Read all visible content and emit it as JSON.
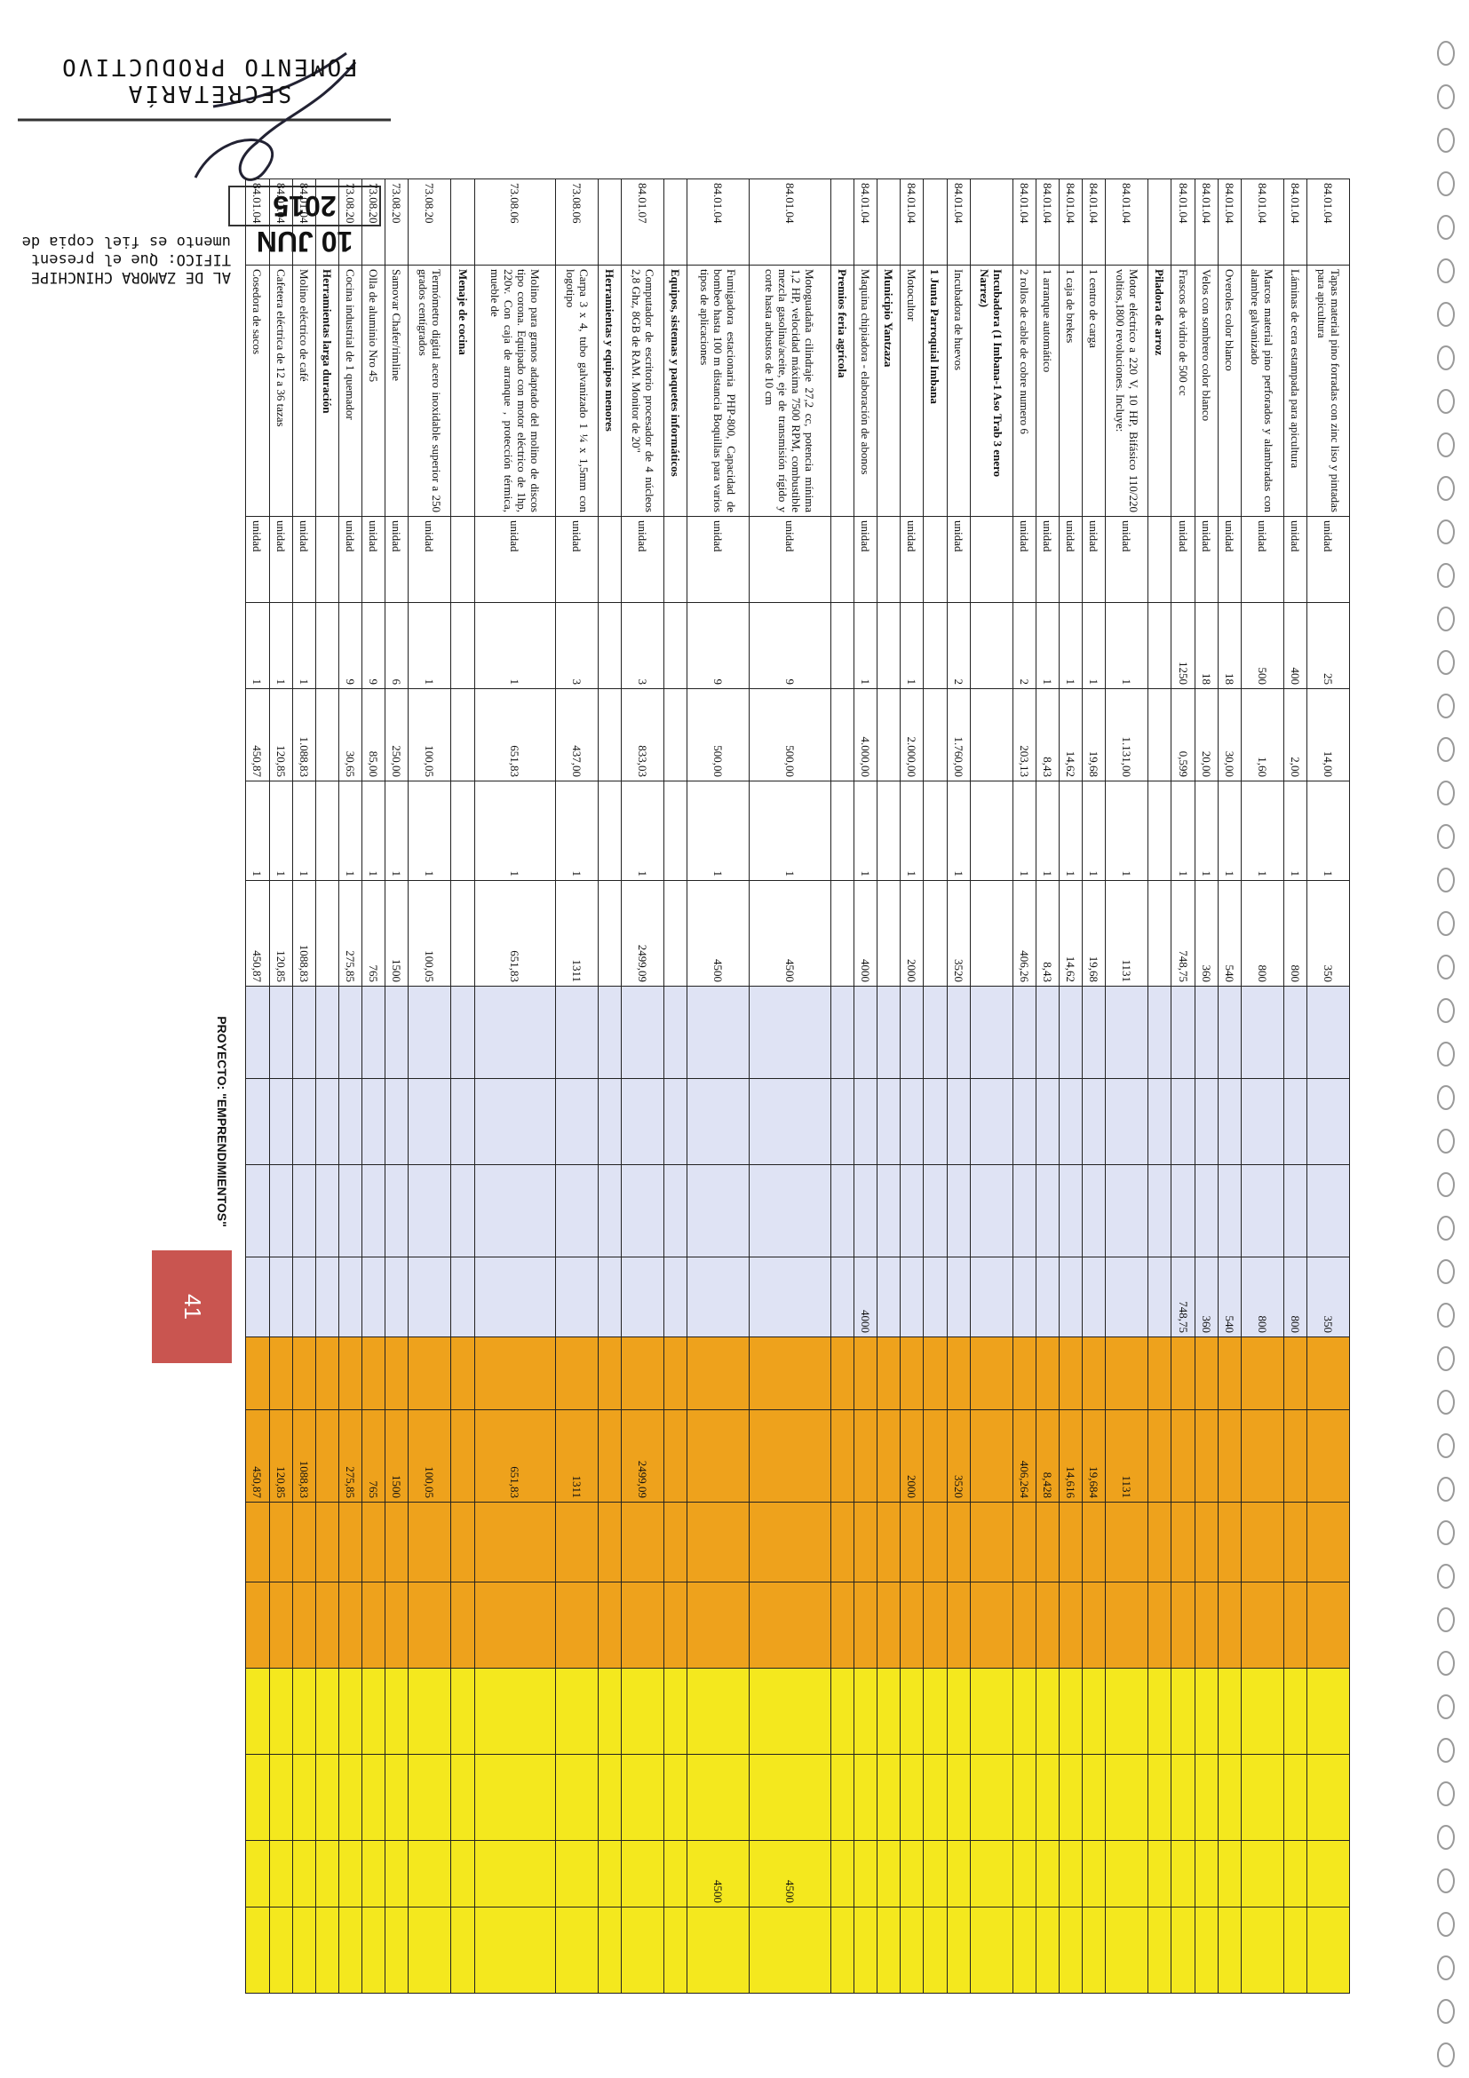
{
  "stamp": {
    "office": [
      "SECRETARÍA",
      "FOMENTO PRODUCTIVO"
    ],
    "date": "10 JUN 2015",
    "certification": [
      "AL DE ZAMORA CHINCHIPE",
      "TIFICO: Que el present",
      "umento es fiel copia de"
    ]
  },
  "project_label": "PROYECTO: \"EMPRENDIMIENTOS\"",
  "page_number": "41",
  "table": {
    "rows": [
      {
        "code": "84.01.04",
        "description": "Tapas material pino forradas con zinc liso y pintadas para apicultura",
        "unit": "unidad",
        "quantity": "25",
        "unit_price": "14,00",
        "factor": "1",
        "total": "350",
        "blue_value": "350"
      },
      {
        "code": "84.01.04",
        "description": "Láminas de cera estampada para apicultura",
        "unit": "unidad",
        "quantity": "400",
        "unit_price": "2,00",
        "factor": "1",
        "total": "800",
        "blue_value": "800"
      },
      {
        "code": "84.01.04",
        "description": "Marcos material pino perforados y alambradas con alambre galvanizado",
        "unit": "unidad",
        "quantity": "500",
        "unit_price": "1,60",
        "factor": "1",
        "total": "800",
        "blue_value": "800"
      },
      {
        "code": "84.01.04",
        "description": "Overoles color blanco",
        "unit": "unidad",
        "quantity": "18",
        "unit_price": "30,00",
        "factor": "1",
        "total": "540",
        "blue_value": "540"
      },
      {
        "code": "84.01.04",
        "description": "Velos con sombrero color blanco",
        "unit": "unidad",
        "quantity": "18",
        "unit_price": "20,00",
        "factor": "1",
        "total": "360",
        "blue_value": "360"
      },
      {
        "code": "84.01.04",
        "description": "Frascos de vidrio de 500 cc",
        "unit": "unidad",
        "quantity": "1250",
        "unit_price": "0,599",
        "factor": "1",
        "total": "748,75",
        "blue_value": "748,75"
      },
      {
        "section": "Piladora de arroz"
      },
      {
        "code": "84.01.04",
        "description": "Motor eléctrico a 220 V, 10 HP, Bifásico 110/220 voltios,1800 revoluciones. Incluye:",
        "unit": "unidad",
        "quantity": "1",
        "unit_price": "1.131,00",
        "factor": "1",
        "total": "1131",
        "orange_value": "1131"
      },
      {
        "code": "84.01.04",
        "description": "1 centro de carga",
        "unit": "unidad",
        "quantity": "1",
        "unit_price": "19,68",
        "factor": "1",
        "total": "19,68",
        "orange_value": "19,684"
      },
      {
        "code": "84.01.04",
        "description": "1 caja de brekes",
        "unit": "unidad",
        "quantity": "1",
        "unit_price": "14,62",
        "factor": "1",
        "total": "14,62",
        "orange_value": "14,616"
      },
      {
        "code": "84.01.04",
        "description": "1 arranque automático",
        "unit": "unidad",
        "quantity": "1",
        "unit_price": "8,43",
        "factor": "1",
        "total": "8,43",
        "orange_value": "8,428"
      },
      {
        "code": "84.01.04",
        "description": "2 rollos de cable de cobre numero 6",
        "unit": "unidad",
        "quantity": "2",
        "unit_price": "203,13",
        "factor": "1",
        "total": "406,26",
        "orange_value": "406,264"
      },
      {
        "section": "Incubadora (1 Imbana-1 Aso Trab 3 enero Narrez)"
      },
      {
        "code": "84.01.04",
        "description": "Incubadora de huevos",
        "unit": "unidad",
        "quantity": "2",
        "unit_price": "1.760,00",
        "factor": "1",
        "total": "3520",
        "orange_value": "3520"
      },
      {
        "section": "1 Junta Parroquial Imbana"
      },
      {
        "code": "84.01.04",
        "description": "Motocultor",
        "unit": "unidad",
        "quantity": "1",
        "unit_price": "2.000,00",
        "factor": "1",
        "total": "2000",
        "orange_value": "2000"
      },
      {
        "section": "Municipio Yantzaza"
      },
      {
        "code": "84.01.04",
        "description": "Maquina chipiadora - elaboración de abonos",
        "unit": "unidad",
        "quantity": "1",
        "unit_price": "4.000,00",
        "factor": "1",
        "total": "4000",
        "blue_value": "4000"
      },
      {
        "section": "Premios feria agrícola"
      },
      {
        "code": "84.01.04",
        "description": "Motoguadaña cilindraje 27,2 cc, potencia mínima 1,2 HP, velocidad máxima 7500 RPM, combustible mezcla gasolina/aceite, eje de transmisión rígido y corte hasta arbustos de 10 cm",
        "unit": "unidad",
        "quantity": "9",
        "unit_price": "500,00",
        "factor": "1",
        "total": "4500",
        "yellow_value": "4500"
      },
      {
        "code": "84.01.04",
        "description": "Fumigadora estacionaria PHP-800, Capacidad de bombeo hasta 100 m distancia Boquillas para varios tipos de aplicaciones",
        "unit": "unidad",
        "quantity": "9",
        "unit_price": "500,00",
        "factor": "1",
        "total": "4500",
        "yellow_value": "4500"
      },
      {
        "section": "Equipos, sistemas y paquetes informáticos"
      },
      {
        "code": "84.01.07",
        "description": "Computador de escritorio procesador de 4 núcleos 2,8 Ghz, 8GB de RAM. Monitor de 20\"",
        "unit": "unidad",
        "quantity": "3",
        "unit_price": "833,03",
        "factor": "1",
        "total": "2499,09",
        "orange_value": "2499,09"
      },
      {
        "section": "Herramientas y equipos menores"
      },
      {
        "code": "73.08.06",
        "description": "Carpa 3 x 4, tubo galvanizado 1 ¼ x 1,5mm con logotipo",
        "unit": "unidad",
        "quantity": "3",
        "unit_price": "437,00",
        "factor": "1",
        "total": "1311",
        "orange_value": "1311"
      },
      {
        "code": "73.08.06",
        "description": "Molino para granos adaptado del molino de discos tipo corona. Equipado con motor eléctrico de 1hp, 220v. Con caja de arranque , protección térmica, mueble de",
        "unit": "unidad",
        "quantity": "1",
        "unit_price": "651,83",
        "factor": "1",
        "total": "651,83",
        "orange_value": "651,83"
      },
      {
        "section": "Menaje de cocina"
      },
      {
        "code": "73.08.20",
        "description": "Termómetro digital acero inoxidable superior a 250 grados centígrados",
        "unit": "unidad",
        "quantity": "1",
        "unit_price": "100,05",
        "factor": "1",
        "total": "100,05",
        "orange_value": "100,05"
      },
      {
        "code": "73.08.20",
        "description": "Samovar Chafer/rimline",
        "unit": "unidad",
        "quantity": "6",
        "unit_price": "250,00",
        "factor": "1",
        "total": "1500",
        "orange_value": "1500"
      },
      {
        "code": "73.08.20",
        "description": "Olla de aluminio Nro 45",
        "unit": "unidad",
        "quantity": "9",
        "unit_price": "85,00",
        "factor": "1",
        "total": "765",
        "orange_value": "765"
      },
      {
        "code": "73.08.20",
        "description": "Cocina industrial de 1 quemador",
        "unit": "unidad",
        "quantity": "9",
        "unit_price": "30,65",
        "factor": "1",
        "total": "275,85",
        "orange_value": "275,85"
      },
      {
        "section": "Herramientas larga duración"
      },
      {
        "code": "84.01.04",
        "description": "Molino eléctrico de café",
        "unit": "unidad",
        "quantity": "1",
        "unit_price": "1.088,83",
        "factor": "1",
        "total": "1088,83",
        "orange_value": "1088,83"
      },
      {
        "code": "84.01.04",
        "description": "Cafetera eléctrica de 12 a 36 tazas",
        "unit": "unidad",
        "quantity": "1",
        "unit_price": "120,85",
        "factor": "1",
        "total": "120,85",
        "orange_value": "120,85"
      },
      {
        "code": "84.01.04",
        "description": "Cosedora de sacos",
        "unit": "unidad",
        "quantity": "1",
        "unit_price": "450,87",
        "factor": "1",
        "total": "450,87",
        "orange_value": "450,87"
      }
    ]
  }
}
